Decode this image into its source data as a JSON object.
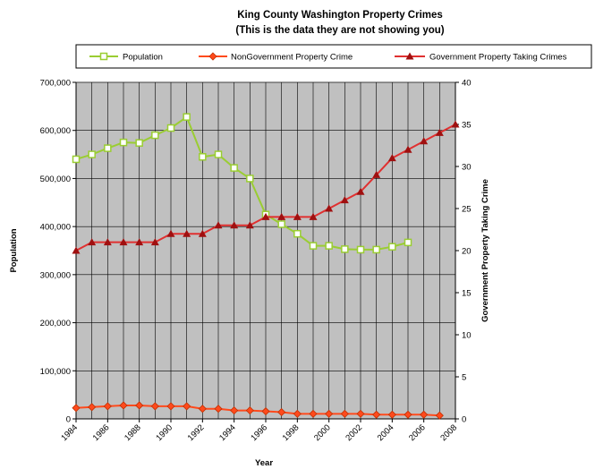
{
  "chart_data": {
    "type": "line",
    "title": "King County Washington Property Crimes",
    "subtitle": "(This is the data they are not showing you)",
    "xlabel": "Year",
    "ylabel_left": "Population",
    "ylabel_right": "Government Property Taking Crime",
    "xlim": [
      1984,
      2008
    ],
    "ylim_left": [
      0,
      700000
    ],
    "ylim_right": [
      0,
      40
    ],
    "x_ticks": [
      "1984",
      "1986",
      "1988",
      "1990",
      "1992",
      "1994",
      "1996",
      "1998",
      "2000",
      "2002",
      "2004",
      "2006",
      "2008"
    ],
    "y_left_ticks": [
      "0",
      "100,000",
      "200,000",
      "300,000",
      "400,000",
      "500,000",
      "600,000",
      "700,000"
    ],
    "y_right_ticks": [
      "0",
      "5",
      "10",
      "15",
      "20",
      "25",
      "30",
      "35",
      "40"
    ],
    "grid": true,
    "legend_position": "top",
    "series": [
      {
        "name": "Population",
        "axis": "left",
        "color": "#9acd32",
        "marker": "square",
        "x": [
          1984,
          1985,
          1986,
          1987,
          1988,
          1989,
          1990,
          1991,
          1992,
          1993,
          1994,
          1995,
          1996,
          1997,
          1998,
          1999,
          2000,
          2001,
          2002,
          2003,
          2004,
          2005
        ],
        "values": [
          540000,
          550000,
          563000,
          575000,
          574000,
          590000,
          605000,
          628000,
          545000,
          550000,
          522000,
          500000,
          425000,
          405000,
          385000,
          360000,
          360000,
          353000,
          352000,
          352000,
          358000,
          367000
        ]
      },
      {
        "name": "NonGovernment Property Crime",
        "axis": "right",
        "color": "#ff4a1c",
        "marker": "diamond",
        "x": [
          1984,
          1985,
          1986,
          1987,
          1988,
          1989,
          1990,
          1991,
          1992,
          1993,
          1994,
          1995,
          1996,
          1997,
          1998,
          1999,
          2000,
          2001,
          2002,
          2003,
          2004,
          2005,
          2006,
          2007
        ],
        "values": [
          1.3,
          1.4,
          1.5,
          1.6,
          1.6,
          1.5,
          1.5,
          1.5,
          1.2,
          1.2,
          1.0,
          1.0,
          0.9,
          0.8,
          0.6,
          0.6,
          0.6,
          0.6,
          0.6,
          0.5,
          0.5,
          0.5,
          0.5,
          0.4
        ]
      },
      {
        "name": "Government Property Taking Crimes",
        "axis": "right",
        "color": "#a01010",
        "marker": "triangle",
        "x": [
          1984,
          1985,
          1986,
          1987,
          1988,
          1989,
          1990,
          1991,
          1992,
          1993,
          1994,
          1995,
          1996,
          1997,
          1998,
          1999,
          2000,
          2001,
          2002,
          2003,
          2004,
          2005,
          2006,
          2007,
          2008
        ],
        "values": [
          20,
          21,
          21,
          21,
          21,
          21,
          22,
          22,
          22,
          23,
          23,
          23,
          24,
          24,
          24,
          24,
          25,
          26,
          27,
          29,
          31,
          32,
          33,
          34,
          35
        ]
      }
    ]
  }
}
